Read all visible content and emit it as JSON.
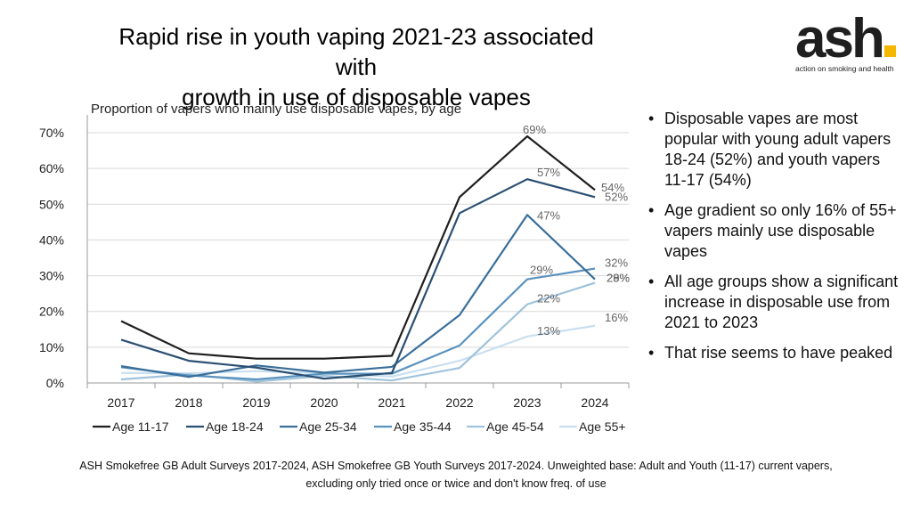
{
  "slide": {
    "title_line1": "Rapid rise in youth vaping 2021-23 associated with",
    "title_line2": "growth in use of  disposable vapes"
  },
  "logo": {
    "word": "ash",
    "tagline": "action on smoking and health",
    "accent_color": "#f5b800"
  },
  "bullets": [
    "Disposable vapes are most popular with young adult vapers 18-24 (52%) and youth vapers 11-17 (54%)",
    "Age gradient so only 16% of 55+ vapers mainly use disposable vapes",
    "All age groups show a significant increase in disposable use from 2021 to 2023",
    "That rise seems to have peaked"
  ],
  "footnote": {
    "line1": "ASH Smokefree GB Adult Surveys 2017-2024, ASH Smokefree GB Youth Surveys 2017-2024. Unweighted base: Adult and Youth (11-17) current vapers,",
    "line2": "excluding only tried once or twice and don't know freq. of use"
  },
  "chart_data": {
    "type": "line",
    "title": "Proportion of vapers who mainly use disposable vapes, by age",
    "xlabel": "",
    "ylabel": "",
    "categories": [
      "2017",
      "2018",
      "2019",
      "2020",
      "2021",
      "2022",
      "2023",
      "2024"
    ],
    "ylim": [
      0,
      70
    ],
    "yticks": [
      0,
      10,
      20,
      30,
      40,
      50,
      60,
      70
    ],
    "ytick_labels": [
      "0%",
      "10%",
      "20%",
      "30%",
      "40%",
      "50%",
      "60%",
      "70%"
    ],
    "grid": true,
    "legend_position": "bottom",
    "series": [
      {
        "name": "Age 11-17",
        "color": "#1f1f1f",
        "values": [
          17.3,
          8.3,
          6.8,
          6.8,
          7.6,
          52,
          69,
          54
        ],
        "labels": {
          "6": "69%",
          "7": "54%"
        }
      },
      {
        "name": "Age 18-24",
        "color": "#2b4f72",
        "values": [
          12.1,
          6.2,
          4.3,
          1.2,
          2.8,
          47.5,
          57,
          52
        ],
        "labels": {
          "6": "57%",
          "7": "52%"
        }
      },
      {
        "name": "Age 25-34",
        "color": "#3a6f9a",
        "values": [
          4.7,
          1.7,
          4.9,
          2.9,
          4.5,
          19,
          47,
          29
        ],
        "labels": {
          "6": "47%",
          "7": "29%"
        }
      },
      {
        "name": "Age 35-44",
        "color": "#5b93bf",
        "values": [
          4.4,
          2.1,
          1.0,
          2.6,
          2.6,
          10.5,
          29,
          32
        ],
        "labels": {
          "6": "29%",
          "7": "32%"
        }
      },
      {
        "name": "Age 45-54",
        "color": "#a0c3db",
        "values": [
          1.0,
          2.4,
          0.4,
          2.0,
          0.7,
          4.2,
          22,
          28
        ],
        "labels": {
          "6": "22%",
          "7": "28%"
        }
      },
      {
        "name": "Age 55+",
        "color": "#c9dff0",
        "values": [
          2.8,
          2.7,
          3.3,
          2.7,
          1.8,
          6.2,
          13,
          16
        ],
        "labels": {
          "6": "13%",
          "7": "16%"
        }
      }
    ]
  }
}
